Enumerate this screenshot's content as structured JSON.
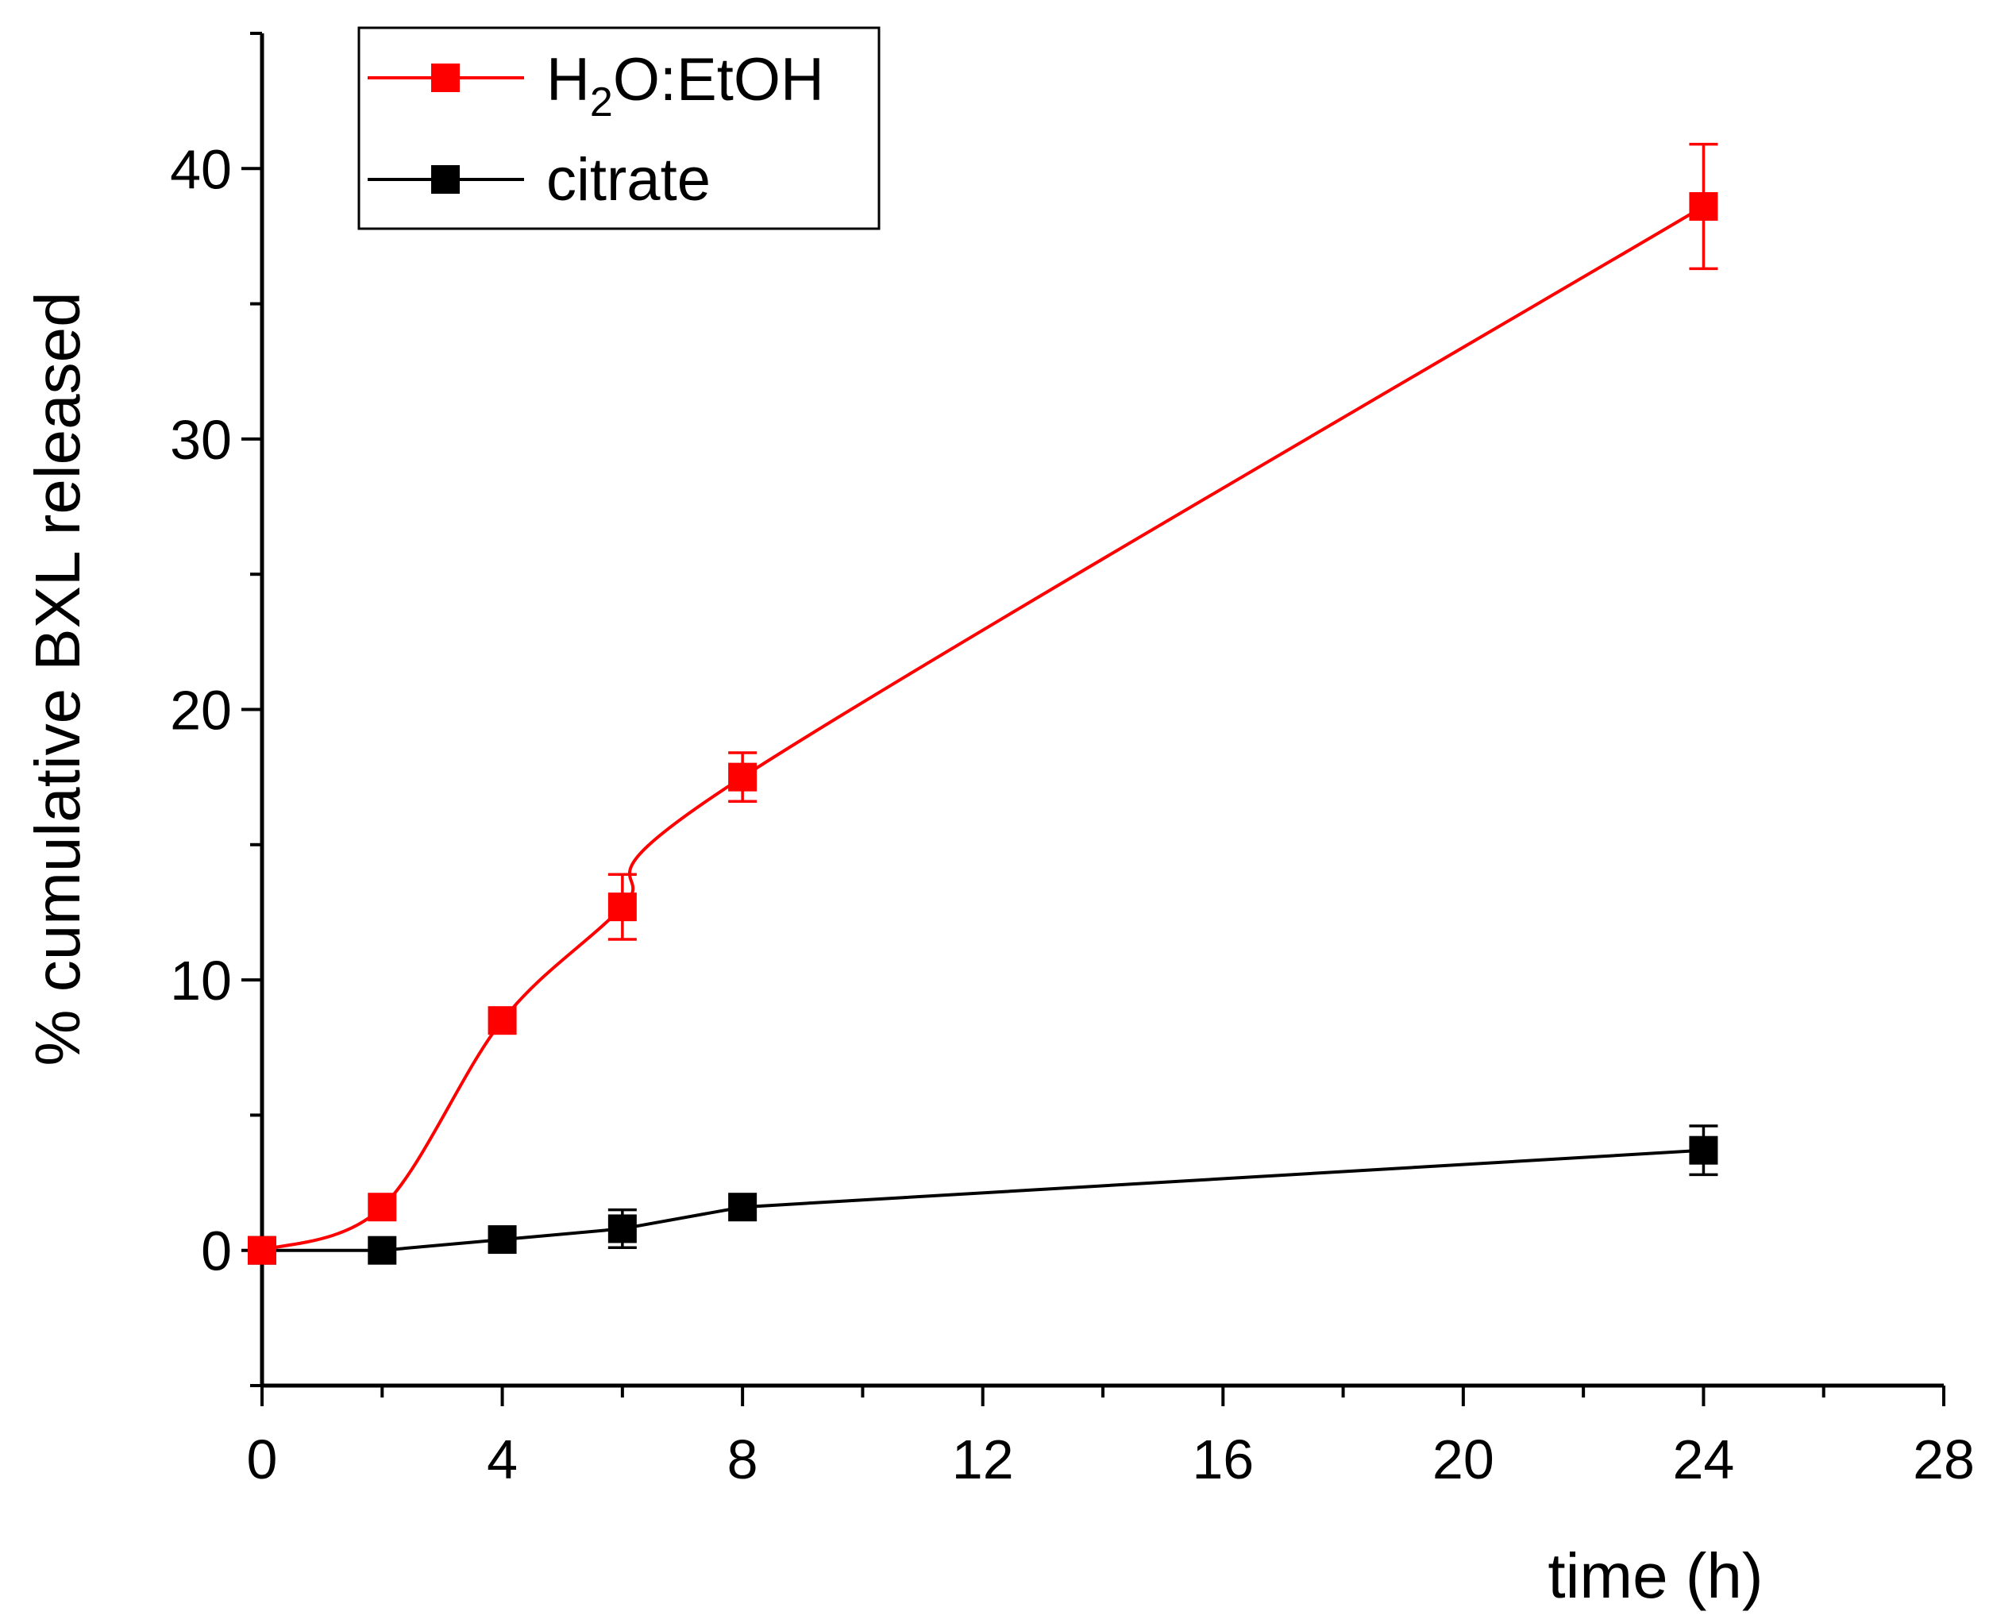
{
  "chart_data": {
    "type": "line",
    "title": "",
    "xlabel": "time (h)",
    "ylabel": "% cumulative BXL released",
    "xlim": [
      0,
      28
    ],
    "ylim": [
      -5,
      45
    ],
    "x_ticks": [
      "0",
      "4",
      "8",
      "12",
      "16",
      "20",
      "24",
      "28"
    ],
    "y_ticks": [
      "0",
      "10",
      "20",
      "30",
      "40"
    ],
    "grid": false,
    "legend_position": "top-left",
    "series": [
      {
        "name": "H2O:EtOH",
        "label_main": "H",
        "label_sub": "2",
        "label_rest": "O:EtOH",
        "color": "#ff0000",
        "smooth": true,
        "x": [
          0,
          2,
          4,
          6,
          8,
          24
        ],
        "y": [
          0,
          1.6,
          8.5,
          12.7,
          17.5,
          38.6
        ],
        "error": [
          0,
          0,
          0,
          1.2,
          0.9,
          2.3
        ]
      },
      {
        "name": "citrate",
        "label_main": "citrate",
        "label_sub": "",
        "label_rest": "",
        "color": "#000000",
        "smooth": false,
        "x": [
          0,
          2,
          4,
          6,
          8,
          24
        ],
        "y": [
          0,
          0,
          0.4,
          0.8,
          1.6,
          3.7
        ],
        "error": [
          0,
          0,
          0,
          0.7,
          0,
          0.9
        ]
      }
    ]
  }
}
